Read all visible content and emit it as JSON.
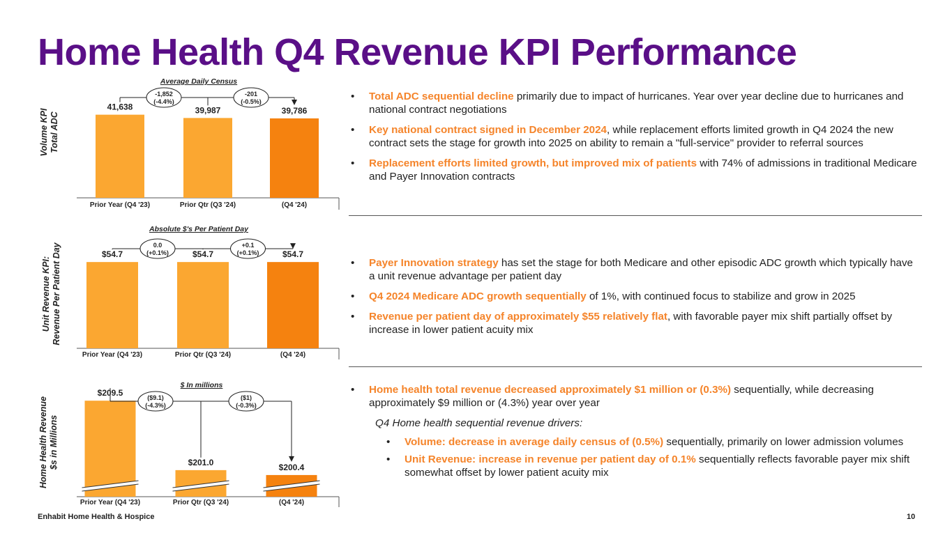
{
  "title": "Home Health Q4 Revenue KPI Performance",
  "footer": "Enhabit Home Health & Hospice",
  "page_number": "10",
  "colors": {
    "title": "#5a0f87",
    "highlight": "#f5842a",
    "bar_light": "#fba731",
    "bar_dark": "#f5820f"
  },
  "sections": [
    {
      "side_label": [
        "Volume KPI",
        "Total ADC"
      ],
      "bullets": [
        {
          "hl": "Total ADC sequential decline",
          "text": " primarily due to impact of hurricanes. Year over year decline due to hurricanes and national contract negotiations"
        },
        {
          "hl": "Key national contract signed in December 2024",
          "text": ", while replacement efforts limited growth in Q4 2024 the new contract sets the stage for growth into 2025 on ability to remain a \"full-service\" provider to referral sources"
        },
        {
          "hl": "Replacement efforts limited growth, but improved mix of patients",
          "text": " with 74% of admissions in traditional Medicare and Payer Innovation contracts"
        }
      ]
    },
    {
      "side_label": [
        "Unit Revenue KPI:",
        "Revenue Per Patient Day"
      ],
      "bullets": [
        {
          "hl": "Payer Innovation strategy",
          "text": " has set the stage for both Medicare and other episodic ADC growth which typically have a unit revenue advantage per patient day"
        },
        {
          "hl": "Q4 2024 Medicare ADC growth sequentially",
          "text": " of 1%, with continued focus to stabilize and grow in 2025"
        },
        {
          "hl": "Revenue per patient day of approximately $55 relatively flat",
          "text": ", with favorable payer mix shift partially offset by increase in lower patient acuity mix"
        }
      ]
    },
    {
      "side_label": [
        "Home Health Revenue",
        "$s in Millions"
      ],
      "bullets": [
        {
          "hl": "Home health total revenue decreased approximately $1 million or (0.3%)",
          "text": " sequentially, while decreasing approximately $9 million or (4.3%) year over year"
        }
      ],
      "sub_intro": "Q4  Home health sequential revenue drivers:",
      "sub_bullets": [
        {
          "hl": "Volume: decrease in average daily census of (0.5%)",
          "text": " sequentially, primarily on lower admission volumes"
        },
        {
          "hl": "Unit Revenue: increase in revenue per patient day of 0.1%",
          "text": " sequentially reflects favorable payer mix shift somewhat offset by lower patient acuity mix"
        }
      ]
    }
  ],
  "chart_data": [
    {
      "type": "bar",
      "title": "Average Daily Census",
      "categories": [
        "Prior Year (Q4 '23)",
        "Prior Qtr (Q3 '24)",
        "(Q4 '24)"
      ],
      "values": [
        41638,
        39987,
        39786
      ],
      "value_labels": [
        "41,638",
        "39,987",
        "39,786"
      ],
      "ylim": [
        0,
        60000
      ],
      "changes": [
        {
          "from": 0,
          "to": 2,
          "label": [
            "-1,852",
            "(-4.4%)"
          ]
        },
        {
          "from": 1,
          "to": 2,
          "label": [
            "-201",
            "(-0.5%)"
          ]
        }
      ]
    },
    {
      "type": "bar",
      "title": "Absolute $'s Per Patient Day",
      "categories": [
        "Prior Year (Q4 '23)",
        "Prior Qtr (Q3 '24)",
        "(Q4 '24)"
      ],
      "values": [
        54.7,
        54.7,
        54.7
      ],
      "value_labels": [
        "$54.7",
        "$54.7",
        "$54.7"
      ],
      "ylim": [
        0,
        79.5
      ],
      "changes": [
        {
          "from": 0,
          "to": 2,
          "label": [
            "0.0",
            "(+0.1%)"
          ]
        },
        {
          "from": 1,
          "to": 2,
          "label": [
            "+0.1",
            "(+0.1%)"
          ]
        }
      ]
    },
    {
      "type": "bar",
      "title": "$ In millions",
      "axis_break": true,
      "categories": [
        "Prior Year (Q4 '23)",
        "Prior Qtr (Q3 '24)",
        "(Q4 '24)"
      ],
      "values": [
        209.5,
        201.0,
        200.4
      ],
      "value_labels": [
        "$209.5",
        "$201.0",
        "$200.4"
      ],
      "ylim": [
        197.75,
        212.5
      ],
      "changes": [
        {
          "from": 0,
          "to": 2,
          "label": [
            "($9.1)",
            "(-4.3%)"
          ]
        },
        {
          "from": 1,
          "to": 2,
          "label": [
            "($1)",
            "(-0.3%)"
          ]
        }
      ]
    }
  ]
}
